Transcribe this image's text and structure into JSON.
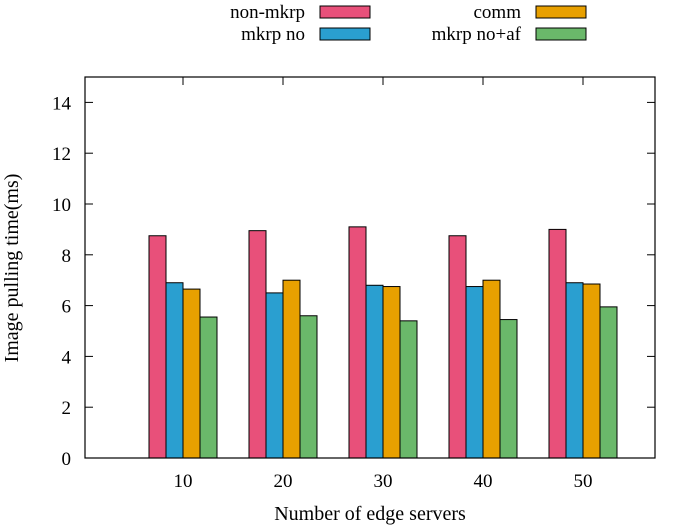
{
  "chart_data": {
    "type": "bar",
    "title": "",
    "xlabel": "Number of edge servers",
    "ylabel": "Image pulling time(ms)",
    "categories": [
      "10",
      "20",
      "30",
      "40",
      "50"
    ],
    "ylim": [
      0,
      15
    ],
    "yticks": [
      0,
      2,
      4,
      6,
      8,
      10,
      12,
      14
    ],
    "grid": false,
    "legend_position": "top",
    "series": [
      {
        "name": "non-mkrp",
        "color": "#e8507a",
        "values": [
          8.75,
          8.95,
          9.1,
          8.75,
          9.0
        ]
      },
      {
        "name": "mkrp no",
        "color": "#2a9fd0",
        "values": [
          6.9,
          6.5,
          6.8,
          6.75,
          6.9
        ]
      },
      {
        "name": "comm",
        "color": "#e8a000",
        "values": [
          6.65,
          7.0,
          6.75,
          7.0,
          6.85
        ]
      },
      {
        "name": "mkrp no+af",
        "color": "#6ab86a",
        "values": [
          5.55,
          5.6,
          5.4,
          5.45,
          5.95
        ]
      }
    ]
  }
}
